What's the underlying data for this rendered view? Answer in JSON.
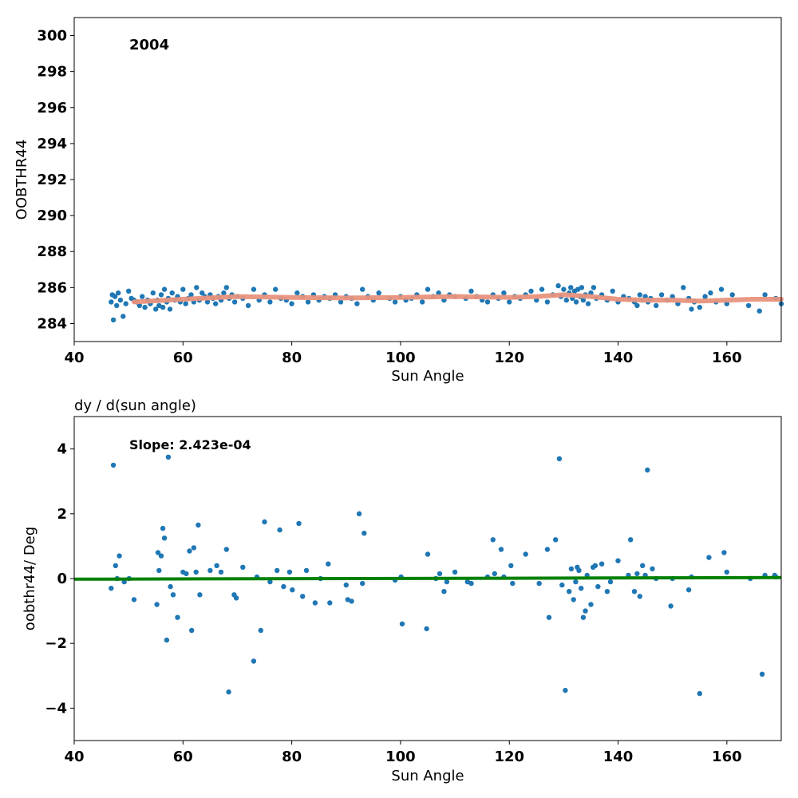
{
  "chart_data": [
    {
      "type": "scatter",
      "title": "",
      "annotation": "2004",
      "xlabel": "Sun Angle",
      "ylabel": "OOBTHR44",
      "xlim": [
        40,
        170
      ],
      "ylim": [
        283,
        301
      ],
      "xticks": [
        40,
        60,
        80,
        100,
        120,
        140,
        160
      ],
      "yticks": [
        284,
        286,
        288,
        290,
        292,
        294,
        296,
        298,
        300
      ],
      "grid": false,
      "colors": {
        "points": "#1f77b4",
        "fit": "#e8927c"
      },
      "series": [
        {
          "x": [
            46.8,
            47.0,
            47.2,
            47.5,
            47.8,
            48.1,
            48.5,
            49.0,
            49.5,
            50.0,
            50.5,
            51.0,
            51.5,
            52.0,
            52.5,
            53.0,
            53.5,
            54.0,
            54.5,
            55.0,
            55.3,
            55.6,
            56.0,
            56.3,
            56.6,
            57.0,
            57.3,
            57.6,
            58.0,
            58.5,
            59.0,
            59.5,
            60.0,
            60.5,
            61.0,
            61.5,
            62.0,
            62.5,
            63.0,
            63.5,
            64.0,
            64.5,
            65.0,
            65.5,
            66.0,
            66.5,
            67.0,
            67.5,
            68.0,
            68.5,
            69.0,
            69.5,
            70.0,
            71.0,
            72.0,
            73.0,
            74.0,
            75.0,
            76.0,
            77.0,
            78.0,
            79.0,
            80.0,
            81.0,
            82.0,
            83.0,
            84.0,
            85.0,
            86.0,
            87.0,
            88.0,
            89.0,
            90.0,
            91.0,
            92.0,
            93.0,
            94.0,
            95.0,
            96.0,
            98.0,
            99.0,
            100.0,
            101.0,
            102.0,
            103.0,
            104.0,
            105.0,
            106.0,
            107.0,
            108.0,
            109.0,
            110.0,
            112.0,
            113.0,
            114.0,
            115.0,
            116.0,
            117.0,
            118.0,
            119.0,
            120.0,
            121.0,
            122.0,
            123.0,
            124.0,
            125.0,
            126.0,
            127.0,
            128.0,
            129.0,
            129.5,
            130.0,
            130.5,
            131.0,
            131.3,
            131.6,
            132.0,
            132.3,
            132.6,
            133.0,
            133.3,
            133.6,
            134.0,
            134.5,
            135.0,
            135.5,
            136.0,
            137.0,
            138.0,
            139.0,
            140.0,
            141.0,
            142.0,
            143.0,
            143.5,
            144.0,
            144.5,
            145.0,
            145.5,
            146.0,
            147.0,
            148.0,
            149.0,
            150.0,
            151.0,
            152.0,
            153.0,
            153.5,
            154.0,
            155.0,
            156.0,
            157.0,
            158.0,
            159.0,
            160.0,
            161.0,
            164.0,
            166.0,
            167.0,
            169.0,
            170.0
          ],
          "y": [
            285.2,
            285.6,
            284.2,
            285.5,
            285.0,
            285.7,
            285.3,
            284.4,
            285.1,
            285.8,
            285.4,
            285.3,
            285.2,
            285.0,
            285.5,
            284.9,
            285.3,
            285.1,
            285.7,
            284.8,
            285.3,
            285.0,
            285.6,
            284.9,
            285.9,
            285.2,
            285.4,
            284.8,
            285.7,
            285.3,
            285.5,
            285.2,
            285.9,
            285.1,
            285.4,
            285.6,
            285.2,
            286.0,
            285.3,
            285.7,
            285.5,
            285.2,
            285.6,
            285.4,
            285.1,
            285.5,
            285.3,
            285.7,
            286.0,
            285.4,
            285.6,
            285.2,
            285.5,
            285.4,
            285.0,
            285.9,
            285.3,
            285.6,
            285.2,
            285.9,
            285.4,
            285.3,
            285.1,
            285.7,
            285.5,
            285.2,
            285.6,
            285.3,
            285.5,
            285.4,
            285.6,
            285.2,
            285.5,
            285.4,
            285.1,
            285.9,
            285.5,
            285.3,
            285.7,
            285.4,
            285.2,
            285.5,
            285.3,
            285.4,
            285.6,
            285.2,
            285.9,
            285.5,
            285.7,
            285.3,
            285.6,
            285.5,
            285.4,
            285.8,
            285.5,
            285.3,
            285.2,
            285.6,
            285.4,
            285.7,
            285.2,
            285.5,
            285.4,
            285.6,
            285.8,
            285.3,
            285.9,
            285.2,
            285.6,
            286.1,
            285.5,
            285.9,
            285.3,
            285.7,
            286.0,
            285.4,
            285.8,
            285.2,
            285.9,
            285.5,
            286.0,
            285.3,
            285.6,
            285.1,
            285.7,
            286.0,
            285.4,
            285.6,
            285.3,
            285.8,
            285.2,
            285.5,
            285.4,
            285.2,
            285.0,
            285.6,
            285.3,
            285.5,
            285.2,
            285.4,
            285.0,
            285.6,
            285.3,
            285.5,
            285.1,
            286.0,
            285.4,
            284.8,
            285.2,
            284.9,
            285.5,
            285.7,
            285.2,
            285.9,
            285.1,
            285.6,
            285.0,
            284.7,
            285.6,
            285.4,
            285.1
          ]
        }
      ],
      "fit": {
        "x": [
          51,
          60,
          70,
          80,
          90,
          100,
          110,
          120,
          125,
          130,
          135,
          140,
          145,
          150,
          155,
          160,
          165,
          170
        ],
        "y": [
          285.2,
          285.35,
          285.5,
          285.45,
          285.42,
          285.45,
          285.5,
          285.45,
          285.5,
          285.6,
          285.5,
          285.35,
          285.3,
          285.3,
          285.25,
          285.3,
          285.35,
          285.35
        ]
      }
    },
    {
      "type": "scatter",
      "title": "dy / d(sun angle)",
      "annotation": "Slope: 2.423e-04",
      "xlabel": "Sun Angle",
      "ylabel": "oobthr44/ Deg",
      "xlim": [
        40,
        170
      ],
      "ylim": [
        -5,
        5
      ],
      "xticks": [
        40,
        60,
        80,
        100,
        120,
        140,
        160
      ],
      "yticks": [
        -4,
        -2,
        0,
        2,
        4
      ],
      "grid": false,
      "colors": {
        "points": "#1f77b4",
        "fit": "#008000"
      },
      "series": [
        {
          "x": [
            46.8,
            47.2,
            47.6,
            47.9,
            48.3,
            49.2,
            50.1,
            51.0,
            55.2,
            55.4,
            55.6,
            56.0,
            56.3,
            56.6,
            57.0,
            57.3,
            57.7,
            58.2,
            59.0,
            60.0,
            60.6,
            61.2,
            61.6,
            62.0,
            62.4,
            62.8,
            63.1,
            65.0,
            66.2,
            67.0,
            68.0,
            68.4,
            69.4,
            69.8,
            71.0,
            73.0,
            73.6,
            74.3,
            75.0,
            76.0,
            77.3,
            77.8,
            78.5,
            79.6,
            80.1,
            81.3,
            82.0,
            82.7,
            84.3,
            85.3,
            86.7,
            87.0,
            90.0,
            90.3,
            91.0,
            92.4,
            93.0,
            93.3,
            99.0,
            100.3,
            100.1,
            104.8,
            105.0,
            106.5,
            107.2,
            108.0,
            108.5,
            110.0,
            112.3,
            113.0,
            116.0,
            117.0,
            117.3,
            118.5,
            119.0,
            120.3,
            120.6,
            123.0,
            125.5,
            127.0,
            127.3,
            128.5,
            129.2,
            129.7,
            130.3,
            131.0,
            131.4,
            131.8,
            132.2,
            132.5,
            132.8,
            133.2,
            133.6,
            134.0,
            134.3,
            135.0,
            135.4,
            135.8,
            136.3,
            137.0,
            138.0,
            138.6,
            140.0,
            141.9,
            142.3,
            143.0,
            143.5,
            144.0,
            144.5,
            145.0,
            145.4,
            146.3,
            147.0,
            149.7,
            150.0,
            153.0,
            153.5,
            155.0,
            156.7,
            159.5,
            160.0,
            164.3,
            166.5,
            167.0,
            168.8,
            169.0
          ],
          "y": [
            -0.3,
            3.5,
            0.4,
            0.0,
            0.7,
            -0.1,
            0.0,
            -0.65,
            -0.8,
            0.8,
            0.25,
            0.7,
            1.55,
            1.25,
            -1.9,
            3.75,
            -0.25,
            -0.5,
            -1.2,
            0.2,
            0.15,
            0.85,
            -1.6,
            0.95,
            0.2,
            1.65,
            -0.5,
            0.25,
            0.4,
            0.2,
            0.9,
            -3.5,
            -0.5,
            -0.6,
            0.35,
            -2.55,
            0.05,
            -1.6,
            1.75,
            -0.1,
            0.25,
            1.5,
            -0.25,
            0.2,
            -0.35,
            1.7,
            -0.55,
            0.25,
            -0.75,
            0.0,
            0.45,
            -0.75,
            -0.2,
            -0.65,
            -0.7,
            2.0,
            -0.15,
            1.4,
            -0.05,
            -1.4,
            0.05,
            -1.55,
            0.75,
            0.0,
            0.15,
            -0.4,
            -0.1,
            0.2,
            -0.1,
            -0.15,
            0.05,
            1.2,
            0.15,
            0.9,
            0.05,
            0.4,
            -0.15,
            0.75,
            -0.15,
            0.9,
            -1.2,
            1.2,
            3.7,
            -0.2,
            -3.45,
            -0.4,
            0.3,
            -0.65,
            -0.1,
            0.35,
            0.25,
            -0.3,
            -1.2,
            -1.0,
            0.1,
            -0.8,
            0.35,
            0.4,
            -0.25,
            0.45,
            -0.4,
            -0.1,
            0.55,
            0.1,
            1.2,
            -0.4,
            0.15,
            -0.55,
            0.4,
            0.1,
            3.35,
            0.3,
            0.0,
            -0.85,
            0.0,
            -0.35,
            0.05,
            -3.55,
            0.65,
            0.8,
            0.2,
            0.0,
            -2.95,
            0.1,
            0.1,
            0.05
          ]
        }
      ],
      "fit": {
        "x": [
          40,
          170
        ],
        "y": [
          -0.02,
          0.03
        ]
      }
    }
  ]
}
